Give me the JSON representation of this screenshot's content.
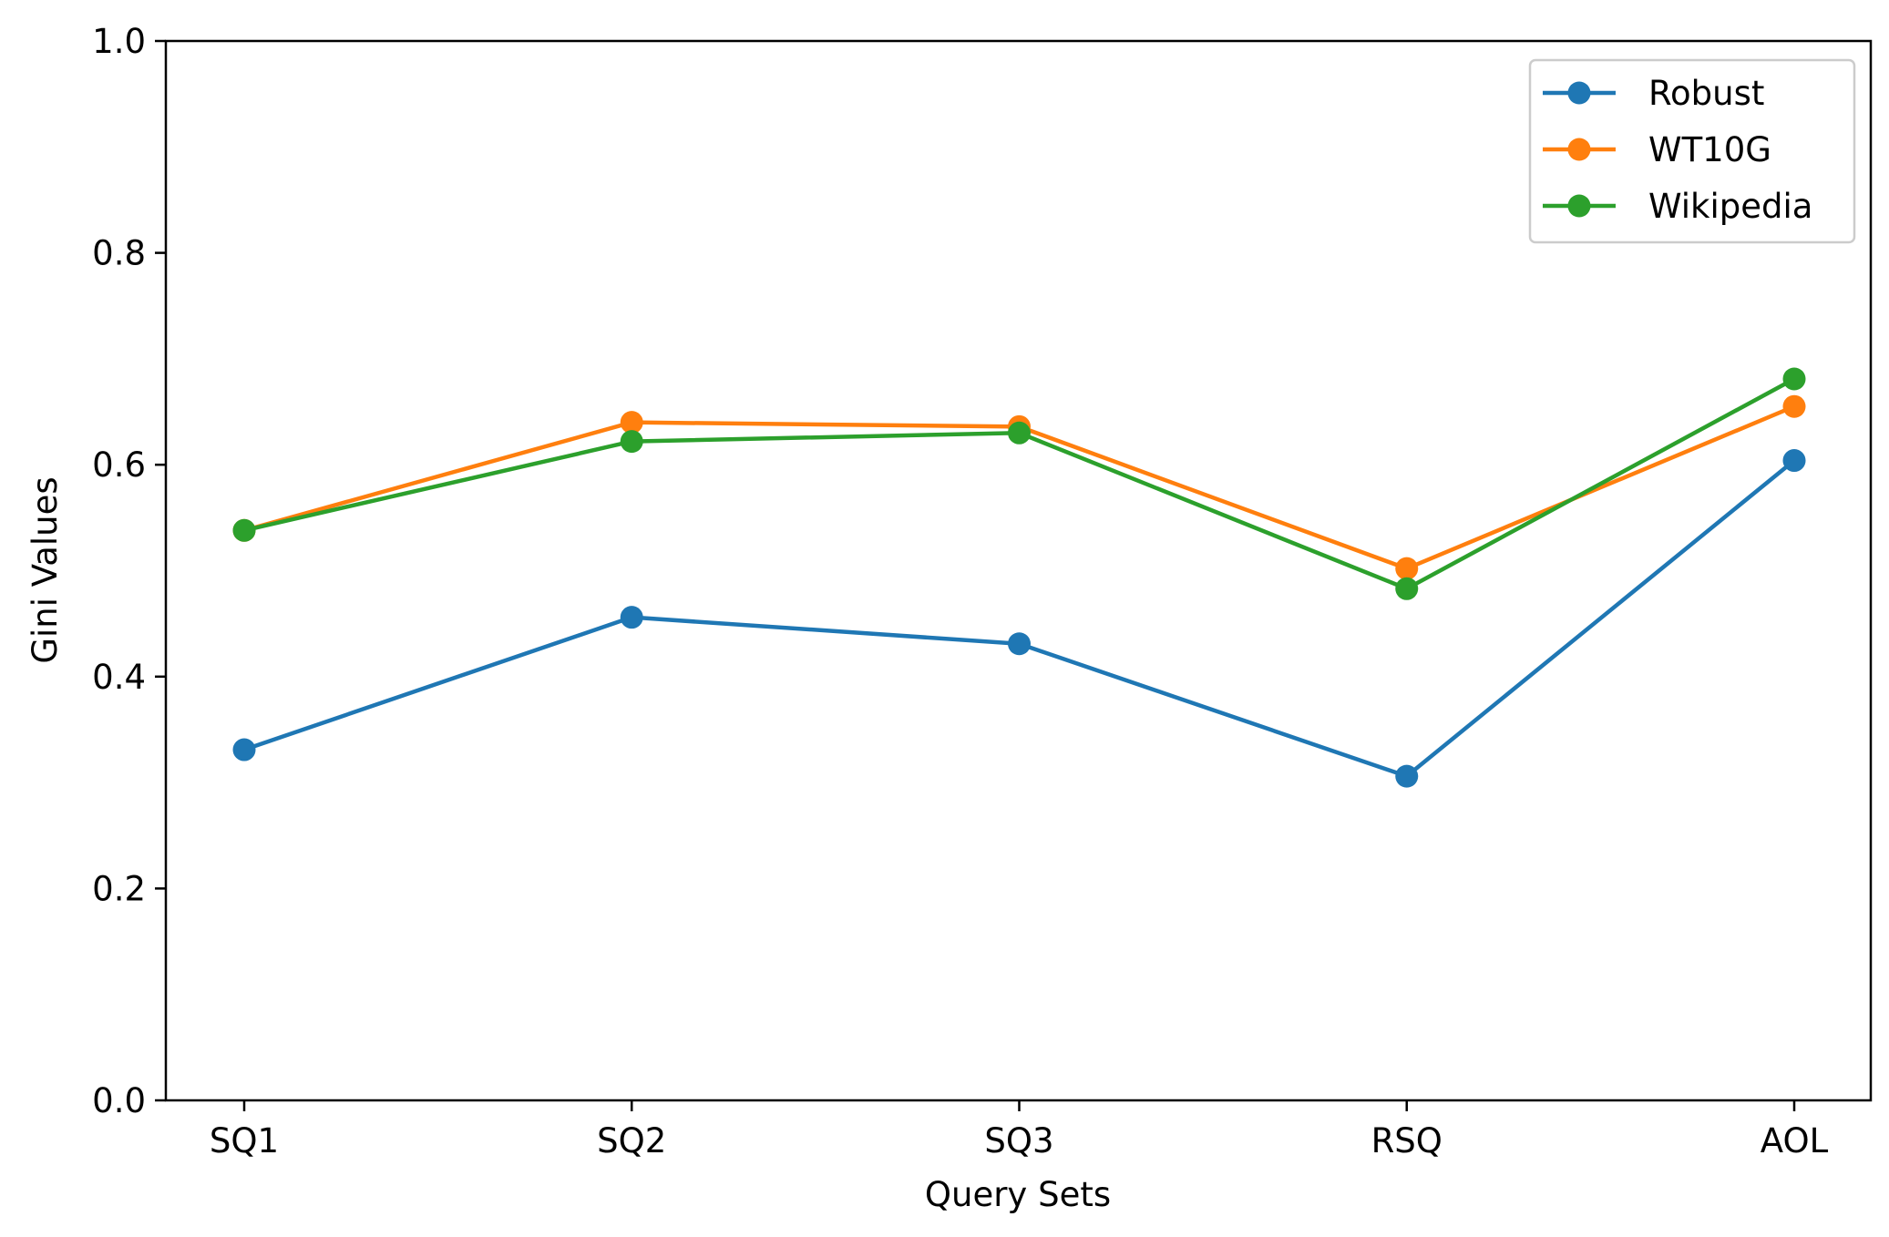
{
  "chart_data": {
    "type": "line",
    "title": "",
    "xlabel": "Query Sets",
    "ylabel": "Gini Values",
    "categories": [
      "SQ1",
      "SQ2",
      "SQ3",
      "RSQ",
      "AOL"
    ],
    "ylim": [
      0.0,
      1.0
    ],
    "yticks": [
      "0.0",
      "0.2",
      "0.4",
      "0.6",
      "0.8",
      "1.0"
    ],
    "grid": false,
    "legend_position": "top-right",
    "series": [
      {
        "name": "Robust",
        "color": "#1f77b4",
        "values": [
          0.331,
          0.456,
          0.431,
          0.306,
          0.604
        ]
      },
      {
        "name": "WT10G",
        "color": "#ff7f0e",
        "values": [
          0.538,
          0.64,
          0.636,
          0.502,
          0.655
        ]
      },
      {
        "name": "Wikipedia",
        "color": "#2ca02c",
        "values": [
          0.538,
          0.622,
          0.63,
          0.483,
          0.681
        ]
      }
    ]
  }
}
